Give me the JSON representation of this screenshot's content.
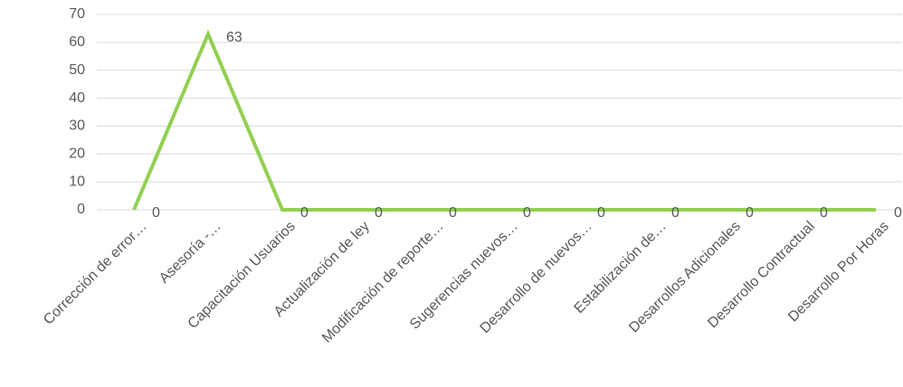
{
  "chart_data": {
    "type": "line",
    "categories": [
      "Corrección de error…",
      "Asesoría -…",
      "Capacitación Usuarios",
      "Actualización de ley",
      "Modificación de reporte…",
      "Sugerencias nuevos…",
      "Desarrollo de nuevos…",
      "Estabilización de…",
      "Desarrollos Adicionales",
      "Desarrollo Contractual",
      "Desarrollo Por Horas"
    ],
    "values": [
      0,
      63,
      0,
      0,
      0,
      0,
      0,
      0,
      0,
      0,
      0
    ],
    "color": "#92d050",
    "ylim": [
      0,
      70
    ],
    "yticks": [
      0,
      10,
      20,
      30,
      40,
      50,
      60,
      70
    ],
    "grid": true
  }
}
